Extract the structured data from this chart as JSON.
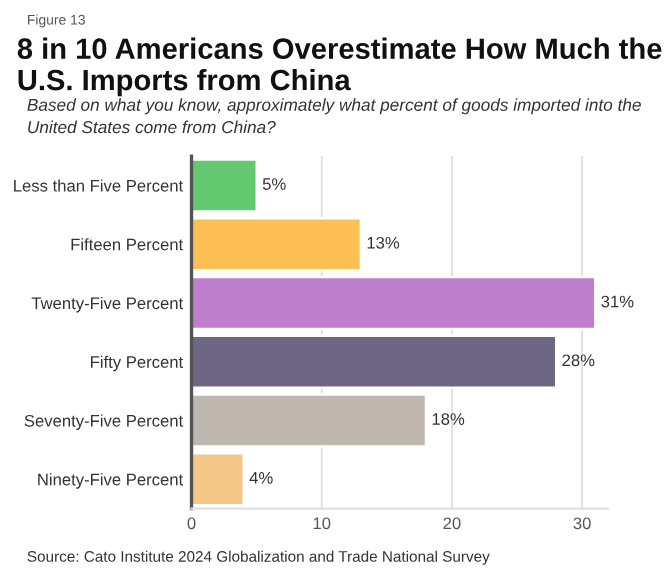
{
  "chart_data": {
    "type": "bar",
    "orientation": "horizontal",
    "title": "8 in 10 Americans Overestimate How Much the U.S. Imports from China",
    "subtitle": "Based on what you know, approximately what percent of goods imported into the United States come from China?",
    "annotations": [
      "Figure 13",
      "Source: Cato Institute 2024 Globalization and Trade National Survey"
    ],
    "categories": [
      "Less than Five Percent",
      "Fifteen Percent",
      "Twenty-Five Percent",
      "Fifty Percent",
      "Seventy-Five Percent",
      "Ninety-Five Percent"
    ],
    "values": [
      5,
      13,
      31,
      28,
      18,
      4
    ],
    "value_labels": [
      "5%",
      "13%",
      "31%",
      "28%",
      "18%",
      "4%"
    ],
    "colors": [
      "#63c86f",
      "#fdc055",
      "#c07fcc",
      "#6e6685",
      "#bfb7ad",
      "#f4c687"
    ],
    "xlim": [
      0,
      32
    ],
    "xticks": [
      0,
      10,
      20,
      30
    ],
    "grid": "x"
  }
}
